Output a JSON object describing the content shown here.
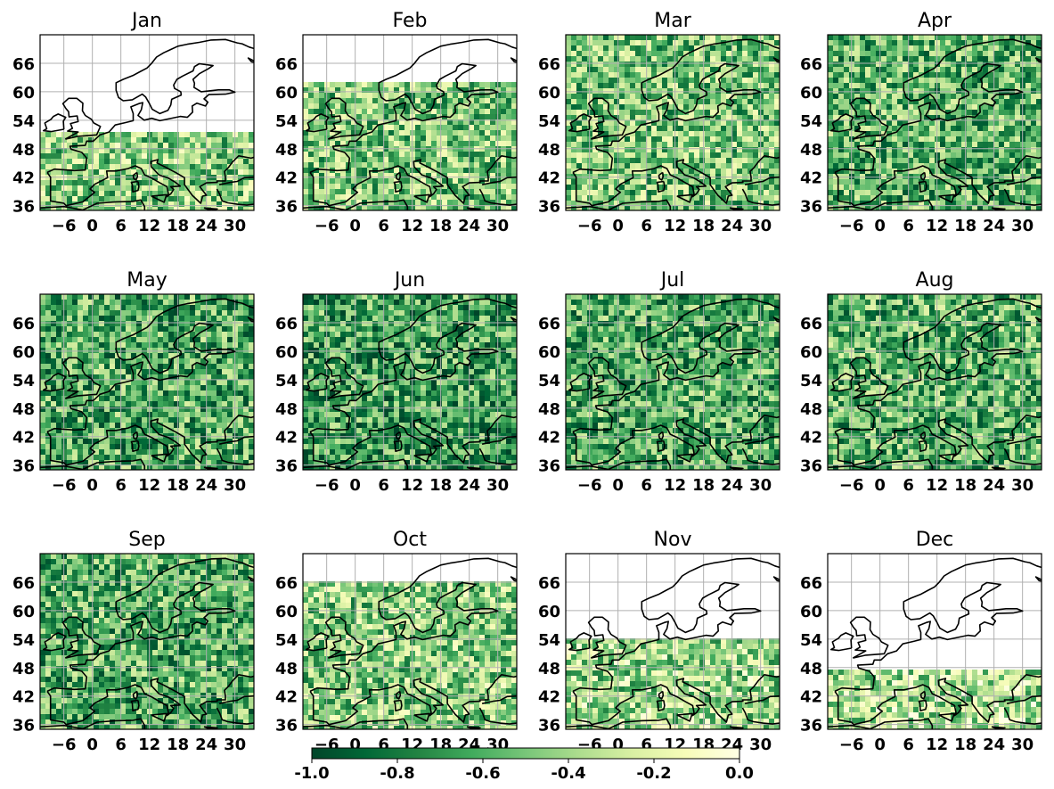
{
  "figure": {
    "panels": [
      {
        "title": "Jan",
        "lat_cutoff": 51.5,
        "mean": -0.45
      },
      {
        "title": "Feb",
        "lat_cutoff": 62,
        "mean": -0.48
      },
      {
        "title": "Mar",
        "lat_cutoff": 72,
        "mean": -0.5
      },
      {
        "title": "Apr",
        "lat_cutoff": 72,
        "mean": -0.58
      },
      {
        "title": "May",
        "lat_cutoff": 72,
        "mean": -0.62
      },
      {
        "title": "Jun",
        "lat_cutoff": 72,
        "mean": -0.66
      },
      {
        "title": "Jul",
        "lat_cutoff": 72,
        "mean": -0.62
      },
      {
        "title": "Aug",
        "lat_cutoff": 72,
        "mean": -0.58
      },
      {
        "title": "Sep",
        "lat_cutoff": 72,
        "mean": -0.6
      },
      {
        "title": "Oct",
        "lat_cutoff": 66,
        "mean": -0.45
      },
      {
        "title": "Nov",
        "lat_cutoff": 54,
        "mean": -0.4
      },
      {
        "title": "Dec",
        "lat_cutoff": 47.5,
        "mean": -0.35
      }
    ],
    "x_ticks": [
      "−6",
      "0",
      "6",
      "12",
      "18",
      "24",
      "30"
    ],
    "y_ticks": [
      "66",
      "60",
      "54",
      "48",
      "42",
      "36"
    ],
    "x_tick_values": [
      -6,
      0,
      6,
      12,
      18,
      24,
      30
    ],
    "y_tick_values": [
      66,
      60,
      54,
      48,
      42,
      36
    ],
    "extent": {
      "lon": [
        -11,
        34
      ],
      "lat": [
        35,
        72
      ]
    },
    "colorbar": {
      "min": -1.0,
      "max": 0.0,
      "tick_labels": [
        "-1.0",
        "-0.8",
        "-0.6",
        "-0.4",
        "-0.2",
        "0.0"
      ],
      "tick_values": [
        -1.0,
        -0.8,
        -0.6,
        -0.4,
        -0.2,
        0.0
      ],
      "colormap": "YlGn_r",
      "colors": [
        "#004529",
        "#006837",
        "#238443",
        "#41ab5d",
        "#78c679",
        "#addd8e",
        "#d9f0a3",
        "#f7fcb9",
        "#ffffe5"
      ]
    },
    "grid": true,
    "grid_color": "#b0b0b0",
    "coastline_color": "#000000"
  }
}
